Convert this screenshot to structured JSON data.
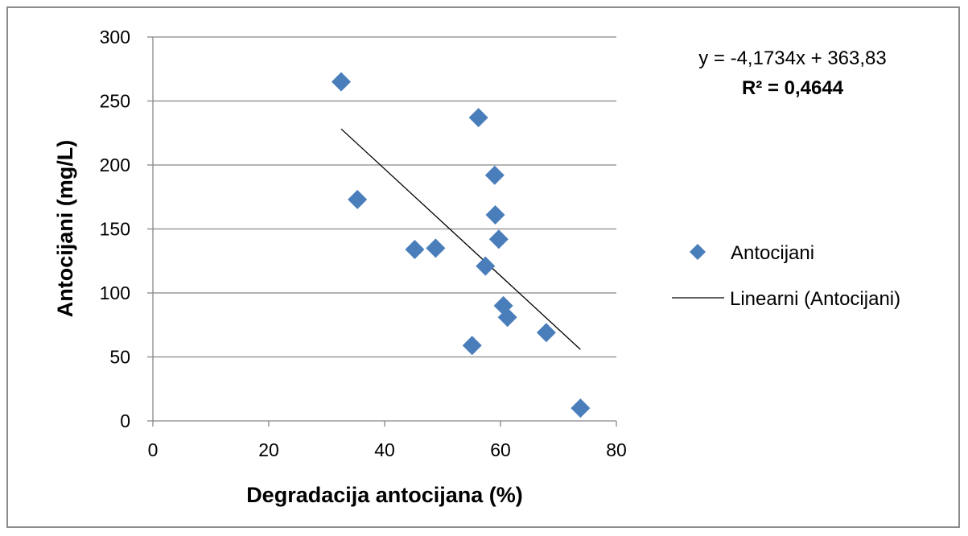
{
  "chart_data": {
    "type": "scatter",
    "xlabel": "Degradacija antocijana (%)",
    "ylabel": "Antocijani (mg/L)",
    "xlim": [
      0,
      80
    ],
    "ylim": [
      0,
      300
    ],
    "xticks": [
      "0",
      "20",
      "40",
      "60",
      "80"
    ],
    "yticks": [
      "0",
      "50",
      "100",
      "150",
      "200",
      "250",
      "300"
    ],
    "grid": "horizontal",
    "legend_position": "right",
    "series": [
      {
        "name": "Antocijani",
        "marker": "diamond",
        "color": "#4a7ebb",
        "points": [
          {
            "x": 32.5,
            "y": 265
          },
          {
            "x": 35.3,
            "y": 173
          },
          {
            "x": 45.2,
            "y": 134
          },
          {
            "x": 48.8,
            "y": 135
          },
          {
            "x": 55.1,
            "y": 59
          },
          {
            "x": 56.2,
            "y": 237
          },
          {
            "x": 57.4,
            "y": 121
          },
          {
            "x": 59.0,
            "y": 192
          },
          {
            "x": 59.1,
            "y": 161
          },
          {
            "x": 59.7,
            "y": 142
          },
          {
            "x": 60.5,
            "y": 90
          },
          {
            "x": 61.2,
            "y": 81
          },
          {
            "x": 67.9,
            "y": 69
          },
          {
            "x": 73.8,
            "y": 10
          }
        ]
      }
    ],
    "trendline": {
      "name": "Linearni (Antocijani)",
      "color": "#000000",
      "slope": -4.1734,
      "intercept": 363.83,
      "x_range": [
        32.5,
        73.8
      ],
      "equation": "y = -4,1734x + 363,83",
      "r_squared": "R² = 0,4644"
    }
  }
}
